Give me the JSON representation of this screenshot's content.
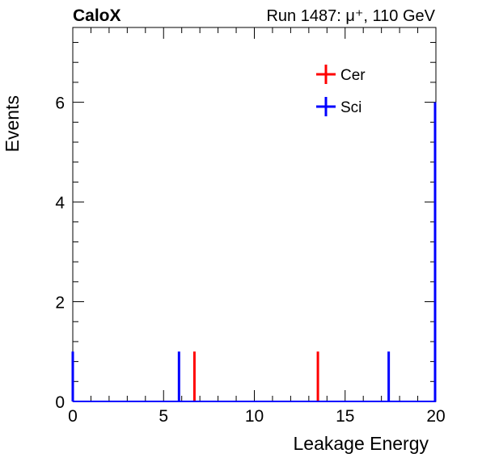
{
  "header": {
    "left": "CaloX",
    "right": "Run 1487: μ⁺, 110 GeV"
  },
  "chart_data": {
    "type": "histogram",
    "xlabel": "Leakage Energy",
    "ylabel": "Events",
    "xlim": [
      0,
      20
    ],
    "ylim": [
      0,
      7.5
    ],
    "xticks": [
      0,
      5,
      10,
      15,
      20
    ],
    "yticks": [
      0,
      2,
      4,
      6
    ],
    "grid": false,
    "legend_position": "top-right",
    "series": [
      {
        "name": "Cer",
        "color": "#ff0000",
        "spikes": [
          {
            "x": 6.7,
            "y": 1
          },
          {
            "x": 13.5,
            "y": 1
          },
          {
            "x": 20.0,
            "y": 1
          }
        ]
      },
      {
        "name": "Sci",
        "color": "#0000ff",
        "spikes": [
          {
            "x": 0.0,
            "y": 1
          },
          {
            "x": 5.85,
            "y": 1
          },
          {
            "x": 17.4,
            "y": 1
          },
          {
            "x": 20.0,
            "y": 6
          }
        ]
      }
    ]
  }
}
